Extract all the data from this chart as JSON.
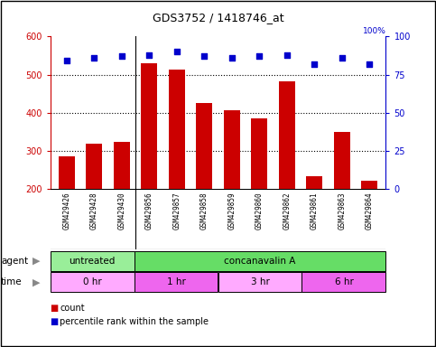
{
  "title": "GDS3752 / 1418746_at",
  "samples": [
    "GSM429426",
    "GSM429428",
    "GSM429430",
    "GSM429856",
    "GSM429857",
    "GSM429858",
    "GSM429859",
    "GSM429860",
    "GSM429862",
    "GSM429861",
    "GSM429863",
    "GSM429864"
  ],
  "counts": [
    287,
    318,
    323,
    530,
    513,
    425,
    406,
    386,
    482,
    233,
    349,
    222
  ],
  "percentile_ranks": [
    84,
    86,
    87,
    88,
    90,
    87,
    86,
    87,
    88,
    82,
    86,
    82
  ],
  "bar_color": "#CC0000",
  "dot_color": "#0000CC",
  "ylim_left": [
    200,
    600
  ],
  "ylim_right": [
    0,
    100
  ],
  "yticks_left": [
    200,
    300,
    400,
    500,
    600
  ],
  "yticks_right": [
    0,
    25,
    50,
    75,
    100
  ],
  "agent_groups": [
    {
      "label": "untreated",
      "start": 0,
      "end": 3,
      "color": "#99EE99"
    },
    {
      "label": "concanavalin A",
      "start": 3,
      "end": 12,
      "color": "#66DD66"
    }
  ],
  "time_groups": [
    {
      "label": "0 hr",
      "start": 0,
      "end": 3,
      "color": "#FFAAFF"
    },
    {
      "label": "1 hr",
      "start": 3,
      "end": 6,
      "color": "#EE66EE"
    },
    {
      "label": "3 hr",
      "start": 6,
      "end": 9,
      "color": "#FFAAFF"
    },
    {
      "label": "6 hr",
      "start": 9,
      "end": 12,
      "color": "#EE66EE"
    }
  ],
  "legend_count_color": "#CC0000",
  "legend_pct_color": "#0000CC",
  "background_color": "#FFFFFF",
  "tick_label_area_color": "#CCCCCC",
  "left_axis_color": "#CC0000",
  "right_axis_color": "#0000CC",
  "gridline_color": "black",
  "separator_positions": [
    3
  ]
}
